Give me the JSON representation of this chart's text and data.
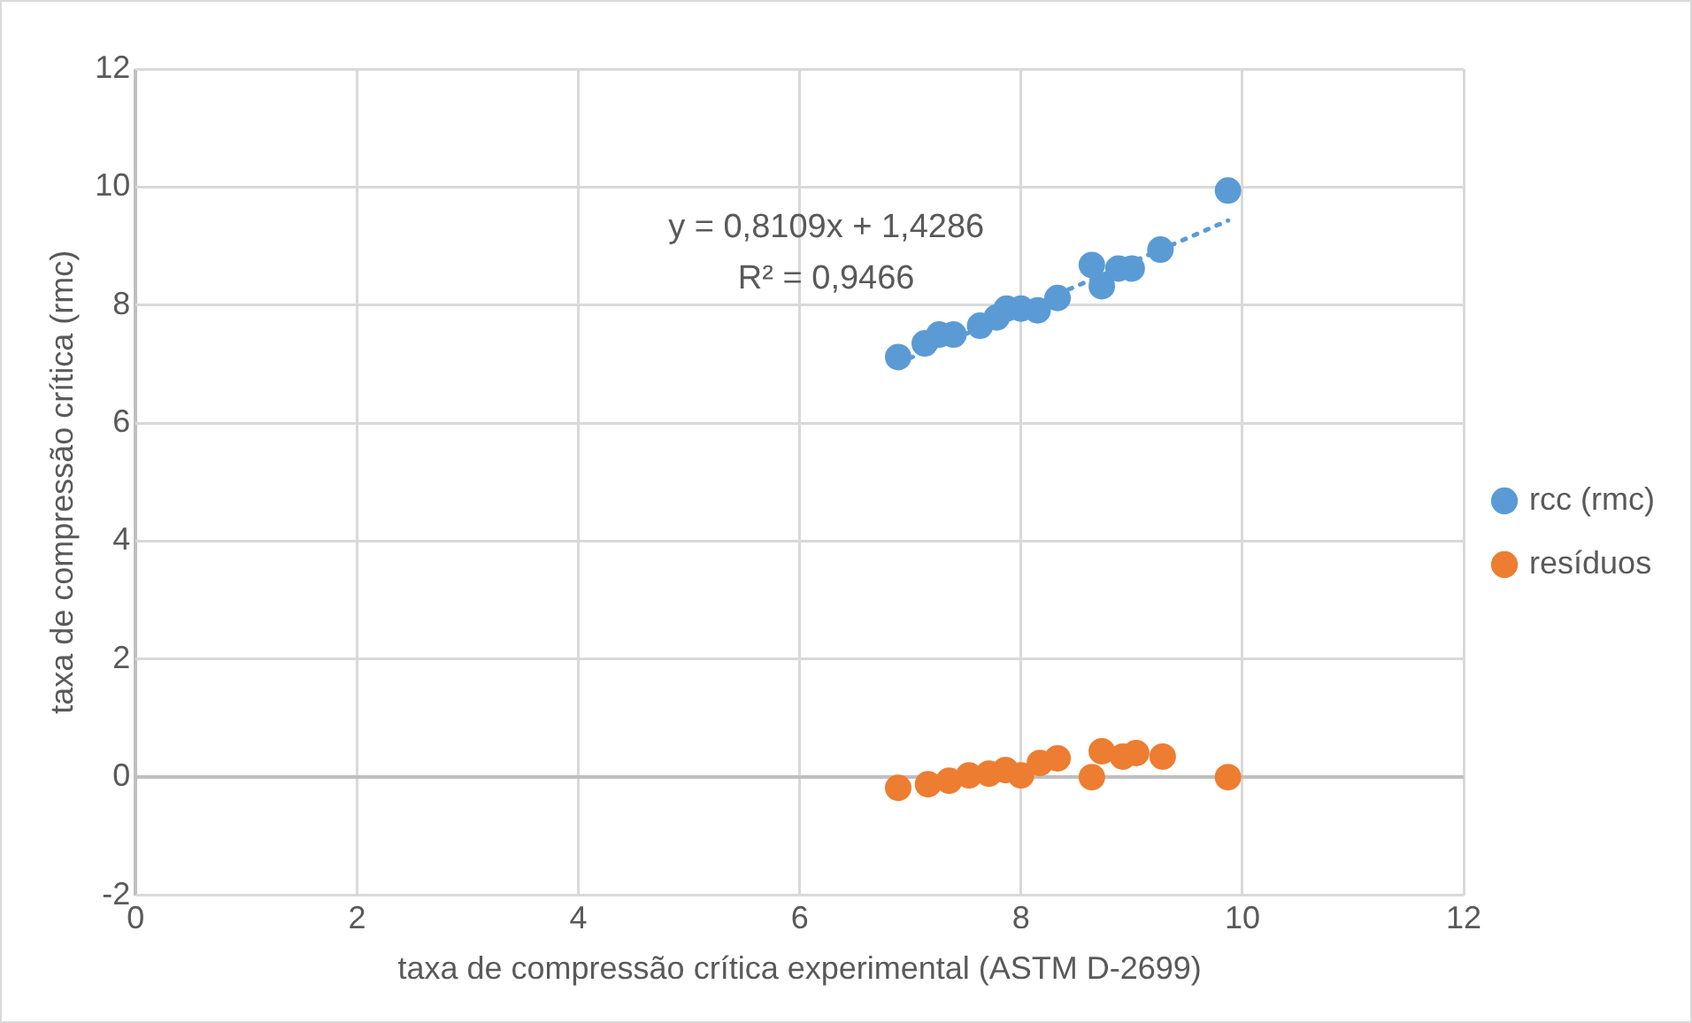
{
  "chart_data": {
    "type": "scatter",
    "xlabel": "taxa de compressão crítica experimental (ASTM D-2699)",
    "ylabel": "taxa de compressão crítica (rmc)",
    "xlim": [
      0,
      12
    ],
    "xticks": [
      0,
      2,
      4,
      6,
      8,
      10,
      12
    ],
    "ylim": [
      -2,
      12
    ],
    "yticks": [
      -2,
      0,
      2,
      4,
      6,
      8,
      10,
      12
    ],
    "grid": true,
    "legend": "right",
    "marker": "circle",
    "annotations": [
      "y = 0,8109x + 1,4286",
      "R² = 0,9466"
    ],
    "series": [
      {
        "name": "rcc (rmc)",
        "color": "#5b9bd5",
        "x": [
          6.89,
          7.13,
          7.26,
          7.39,
          7.63,
          7.78,
          7.87,
          8.0,
          8.15,
          8.33,
          8.64,
          8.73,
          8.88,
          9.0,
          9.26,
          9.87
        ],
        "values": [
          7.12,
          7.35,
          7.5,
          7.5,
          7.65,
          7.79,
          7.94,
          7.94,
          7.91,
          8.12,
          8.68,
          8.32,
          8.62,
          8.62,
          8.94,
          9.94
        ]
      },
      {
        "name": "resíduos",
        "color": "#ed7d31",
        "x": [
          6.89,
          7.16,
          7.35,
          7.53,
          7.71,
          7.86,
          8.0,
          8.17,
          8.33,
          8.64,
          8.73,
          8.92,
          9.04,
          9.28,
          9.87
        ],
        "values": [
          -0.18,
          -0.12,
          -0.06,
          0.03,
          0.06,
          0.12,
          0.03,
          0.24,
          0.32,
          0,
          0.44,
          0.35,
          0.41,
          0.35,
          0
        ]
      },
      {
        "type": "line",
        "color": "#5b9bd5",
        "line_style": "dotted",
        "marker": "none",
        "x": [
          6.89,
          9.87
        ],
        "values": [
          7.016,
          9.432
        ]
      }
    ]
  }
}
